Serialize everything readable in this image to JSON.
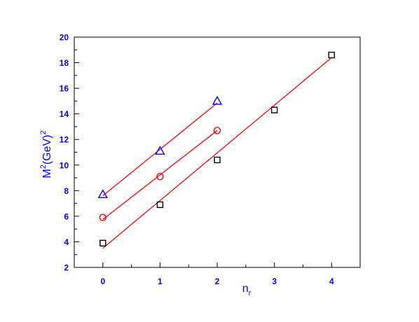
{
  "chart_data": {
    "type": "scatter",
    "xlim": [
      -0.5,
      4.5
    ],
    "ylim": [
      2,
      20
    ],
    "x_ticks": [
      "0",
      "1",
      "2",
      "3",
      "4"
    ],
    "y_ticks": [
      "2",
      "4",
      "6",
      "8",
      "10",
      "12",
      "14",
      "16",
      "18",
      "20"
    ],
    "xlabel": {
      "base": "n",
      "sub": "r"
    },
    "ylabel": {
      "base": "M",
      "sup1": "2",
      "mid": "(GeV)",
      "sup2": "2"
    },
    "tick_label_color": "#0000ff",
    "fit_line_color": "#ff0000",
    "grid": false,
    "series": [
      {
        "marker": "triangle",
        "color": "#0000ff",
        "x": [
          0,
          1,
          2
        ],
        "y": [
          7.7,
          11.1,
          15.0
        ],
        "fit": {
          "x": [
            0,
            2
          ],
          "y": [
            7.6,
            14.85
          ]
        }
      },
      {
        "marker": "circle",
        "color": "#ff0000",
        "x": [
          0,
          1,
          2
        ],
        "y": [
          5.9,
          9.1,
          12.7
        ],
        "fit": {
          "x": [
            0,
            2
          ],
          "y": [
            5.75,
            12.7
          ]
        }
      },
      {
        "marker": "square",
        "color": "#000000",
        "x": [
          0,
          1,
          2,
          3,
          4
        ],
        "y": [
          3.9,
          6.9,
          10.4,
          14.3,
          18.6
        ],
        "fit": {
          "x": [
            0,
            4
          ],
          "y": [
            3.5,
            18.4
          ]
        }
      }
    ]
  }
}
